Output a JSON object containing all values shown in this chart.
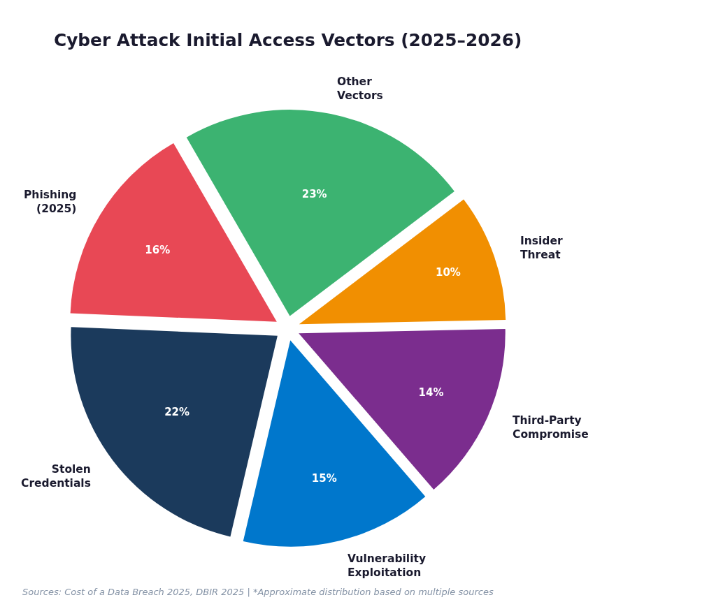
{
  "chart_data": {
    "type": "pie",
    "title": "Cyber Attack Initial Access Vectors (2025–2026)",
    "categories": [
      "Phishing\n(2025)",
      "Stolen\nCredentials",
      "Vulnerability\nExploitation",
      "Third-Party\nCompromise",
      "Insider\nThreat",
      "Other\nVectors"
    ],
    "values": [
      16,
      22,
      15,
      14,
      10,
      23
    ],
    "value_labels": [
      "16%",
      "22%",
      "15%",
      "14%",
      "10%",
      "23%"
    ],
    "colors": [
      "#e84855",
      "#1b3a5c",
      "#0077cc",
      "#7b2d8e",
      "#f18f01",
      "#3cb371"
    ],
    "annotations": [
      "Sources: Cost of a Data Breach 2025, DBIR 2025 | *Approximate distribution based on multiple sources"
    ]
  }
}
